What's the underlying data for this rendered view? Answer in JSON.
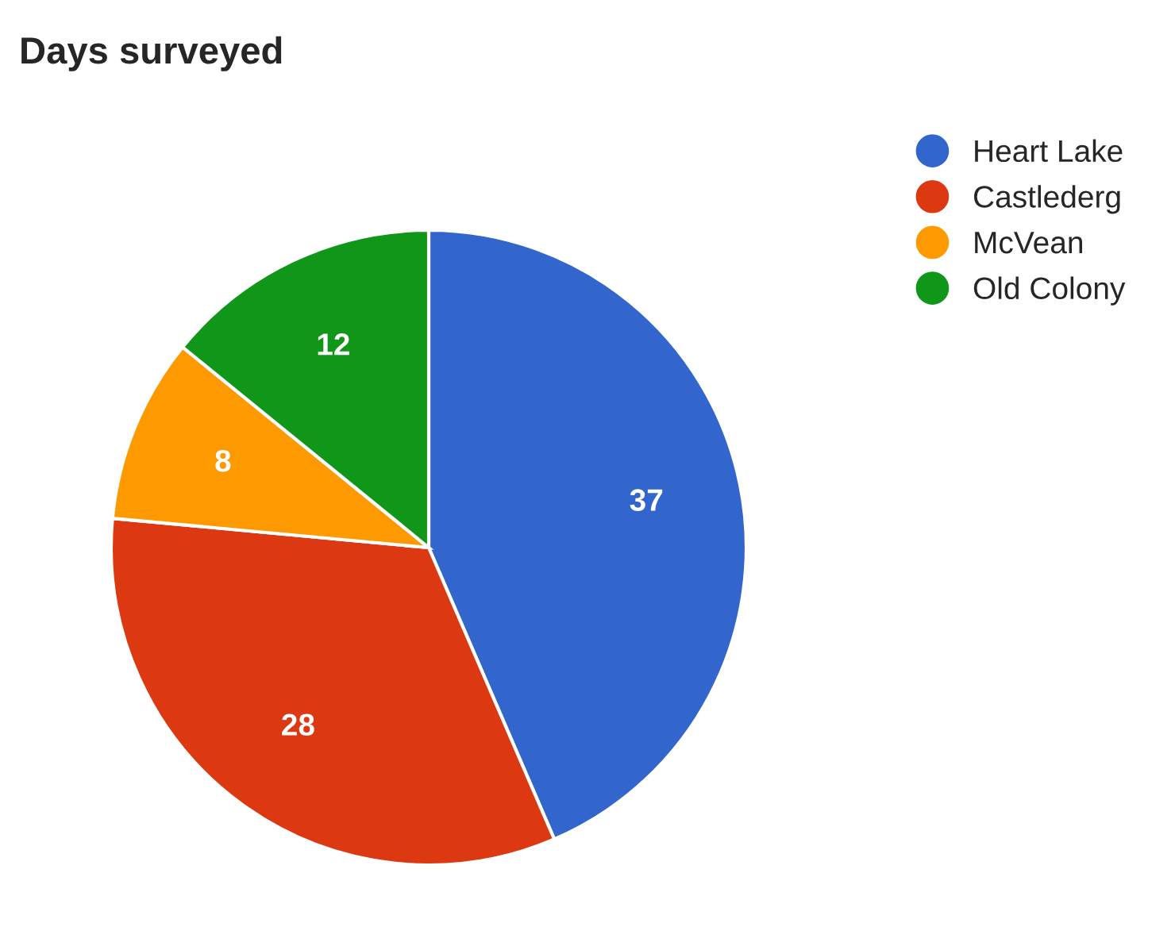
{
  "chart_data": {
    "type": "pie",
    "title": "Days surveyed",
    "categories": [
      "Heart Lake",
      "Castlederg",
      "McVean",
      "Old Colony"
    ],
    "values": [
      37,
      28,
      8,
      12
    ],
    "colors": [
      "#3366cc",
      "#dc3912",
      "#ff9900",
      "#109618"
    ],
    "data_labels": true,
    "legend": "top right"
  }
}
